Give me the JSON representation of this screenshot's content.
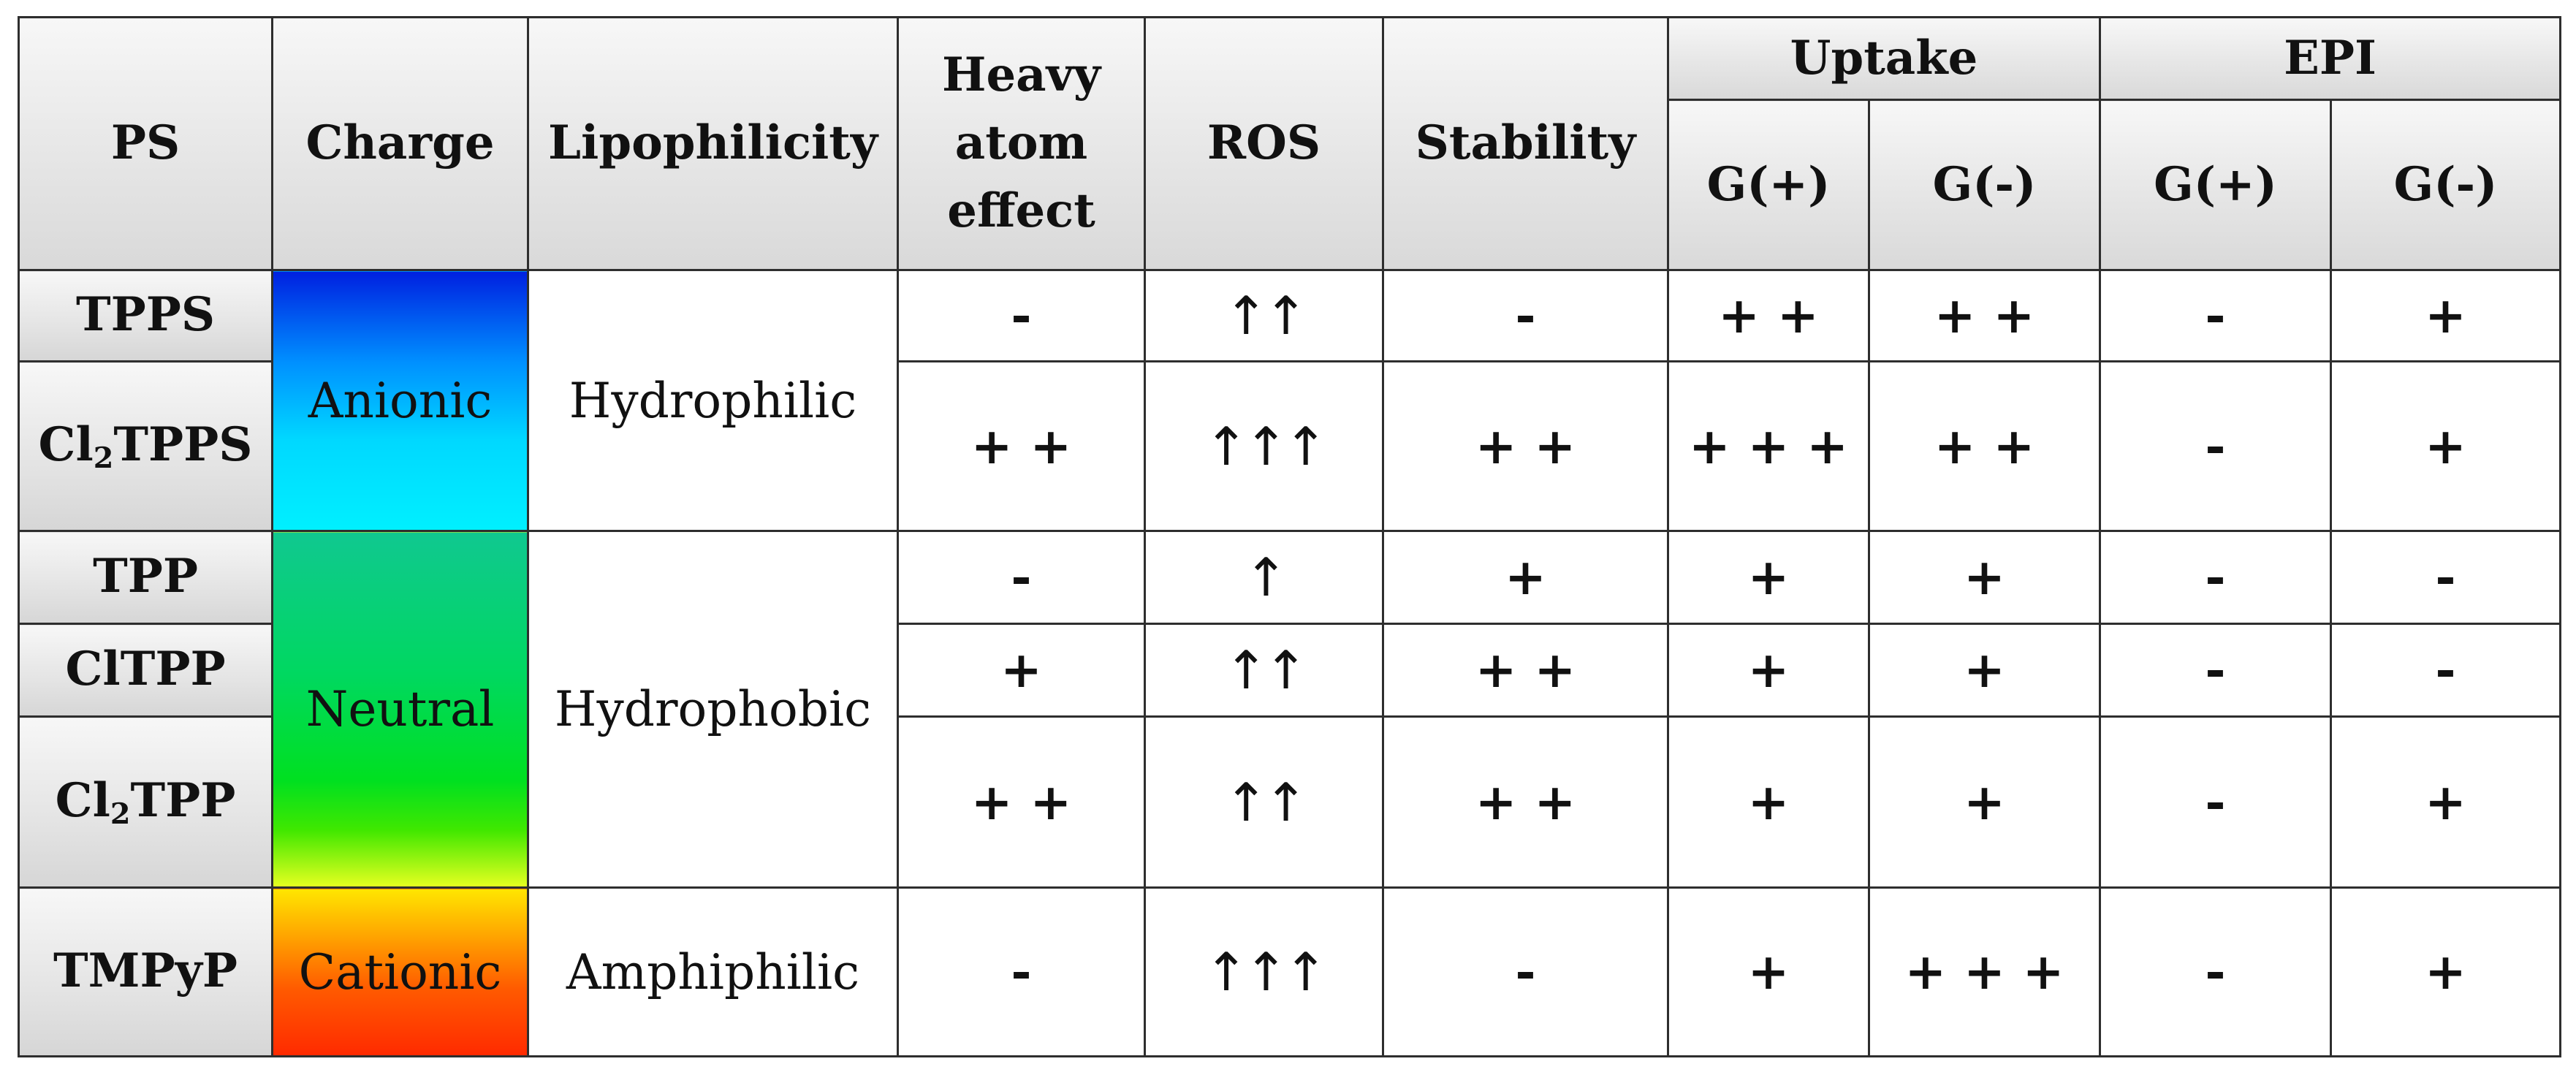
{
  "headers": {
    "ps": "PS",
    "charge": "Charge",
    "lipophilicity": "Lipophilicity",
    "heavy_atom_effect": [
      "Heavy",
      "atom",
      "effect"
    ],
    "ros": "ROS",
    "stability": "Stability",
    "uptake": "Uptake",
    "epi": "EPI",
    "uptake_gpos": "G(+)",
    "uptake_gneg": "G(-)",
    "epi_gpos": "G(+)",
    "epi_gneg": "G(-)"
  },
  "charge_groups": [
    {
      "label": "Anionic",
      "lipophilicity": "Hydrophilic"
    },
    {
      "label": "Neutral",
      "lipophilicity": "Hydrophobic"
    },
    {
      "label": "Cationic",
      "lipophilicity": "Amphiphilic"
    }
  ],
  "rows": [
    {
      "ps": "TPPS",
      "ps_sub": "",
      "ps_rest": "",
      "heavy": "-",
      "ros": "↑↑",
      "stability": "-",
      "uptake_gpos": "+ +",
      "uptake_gneg": "+ +",
      "epi_gpos": "-",
      "epi_gneg": "+"
    },
    {
      "ps": "Cl",
      "ps_sub": "2",
      "ps_rest": "TPPS",
      "heavy": "+ +",
      "ros": "↑↑↑",
      "stability": "+ +",
      "uptake_gpos": "+ + +",
      "uptake_gneg": "+ +",
      "epi_gpos": "-",
      "epi_gneg": "+"
    },
    {
      "ps": "TPP",
      "ps_sub": "",
      "ps_rest": "",
      "heavy": "-",
      "ros": "↑",
      "stability": "+",
      "uptake_gpos": "+",
      "uptake_gneg": "+",
      "epi_gpos": "-",
      "epi_gneg": "-"
    },
    {
      "ps": "ClTPP",
      "ps_sub": "",
      "ps_rest": "",
      "heavy": "+",
      "ros": "↑↑",
      "stability": "+ +",
      "uptake_gpos": "+",
      "uptake_gneg": "+",
      "epi_gpos": "-",
      "epi_gneg": "-"
    },
    {
      "ps": "Cl",
      "ps_sub": "2",
      "ps_rest": "TPP",
      "heavy": "+ +",
      "ros": "↑↑",
      "stability": "+ +",
      "uptake_gpos": "+",
      "uptake_gneg": "+",
      "epi_gpos": "-",
      "epi_gneg": "+"
    },
    {
      "ps": "TMPyP",
      "ps_sub": "",
      "ps_rest": "",
      "heavy": "-",
      "ros": "↑↑↑",
      "stability": "-",
      "uptake_gpos": "+",
      "uptake_gneg": "+ + +",
      "epi_gpos": "-",
      "epi_gneg": "+"
    }
  ],
  "colors": {
    "border": "#2e2e2e",
    "header_bg": "#e6e6e6",
    "anionic_top": "#0020e0",
    "anionic_bottom": "#00f0ff",
    "neutral_top": "#10c890",
    "neutral_bottom": "#e6ff20",
    "cationic_top": "#ffe600",
    "cationic_bottom": "#ff2a00"
  }
}
